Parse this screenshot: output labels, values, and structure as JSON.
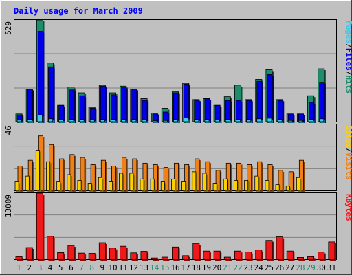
{
  "chart_data": {
    "type": "bar",
    "title": "Daily usage for March 2009",
    "categories": [
      "1",
      "2",
      "3",
      "4",
      "5",
      "6",
      "7",
      "8",
      "9",
      "10",
      "11",
      "12",
      "13",
      "14",
      "15",
      "16",
      "17",
      "18",
      "19",
      "20",
      "21",
      "22",
      "23",
      "24",
      "25",
      "26",
      "27",
      "28",
      "29",
      "30",
      "31"
    ],
    "weekend_days": [
      "1",
      "7",
      "8",
      "14",
      "15",
      "21",
      "22",
      "28",
      "29"
    ],
    "panels": [
      {
        "id": "hits-files-pages",
        "ymax": 529,
        "ymax_label": "529",
        "legend": [
          "Pages",
          "/",
          "Files",
          "/",
          "Hits"
        ],
        "series": [
          {
            "name": "Hits",
            "color": "#1f8c6b",
            "values": [
              40,
              170,
              529,
              305,
              85,
              180,
              150,
              75,
              190,
              150,
              185,
              170,
              120,
              45,
              70,
              155,
              200,
              115,
              120,
              85,
              130,
              190,
              115,
              220,
              270,
              115,
              40,
              40,
              135,
              275,
              0
            ]
          },
          {
            "name": "Files",
            "color": "#0000e8",
            "values": [
              35,
              170,
              470,
              285,
              85,
              165,
              135,
              70,
              185,
              140,
              180,
              170,
              110,
              40,
              50,
              150,
              195,
              110,
              120,
              85,
              110,
              110,
              110,
              210,
              245,
              110,
              40,
              40,
              100,
              205,
              0
            ]
          },
          {
            "name": "Pages",
            "color": "#40c8e8",
            "values": [
              8,
              12,
              35,
              15,
              10,
              12,
              12,
              10,
              12,
              12,
              12,
              12,
              10,
              5,
              6,
              12,
              20,
              12,
              12,
              10,
              12,
              12,
              12,
              15,
              18,
              12,
              6,
              6,
              12,
              15,
              0
            ]
          }
        ]
      },
      {
        "id": "visits-sites",
        "ymax": 46,
        "ymax_label": "46",
        "legend": [
          "Sites",
          "/",
          "Visits"
        ],
        "series": [
          {
            "name": "Visits",
            "color": "#f08018",
            "values": [
              17,
              21,
              38,
              32,
              22,
              25,
              23,
              18,
              21,
              17,
              23,
              22,
              19,
              18,
              16,
              19,
              18,
              22,
              20,
              14,
              19,
              19,
              18,
              20,
              18,
              14,
              13,
              21,
              0,
              0,
              0
            ]
          },
          {
            "name": "Sites",
            "color": "#ffd000",
            "values": [
              6,
              10,
              28,
              20,
              6,
              11,
              7,
              5,
              9,
              6,
              12,
              12,
              8,
              8,
              6,
              8,
              6,
              13,
              12,
              5,
              8,
              7,
              7,
              10,
              7,
              4,
              3,
              9,
              0,
              0,
              0
            ]
          }
        ]
      },
      {
        "id": "kbytes",
        "ymax": 13009,
        "ymax_label": "13009",
        "legend": [
          "KBytes"
        ],
        "series": [
          {
            "name": "KBytes",
            "color": "#f01818",
            "values": [
              500,
              2300,
              13009,
              4500,
              1300,
              2700,
              1200,
              1150,
              3250,
              2200,
              2550,
              1250,
              1550,
              250,
              400,
              2400,
              700,
              3100,
              1600,
              1600,
              400,
              1600,
              1400,
              1800,
              3700,
              4400,
              1600,
              350,
              500,
              1400,
              3400
            ]
          }
        ]
      }
    ]
  }
}
